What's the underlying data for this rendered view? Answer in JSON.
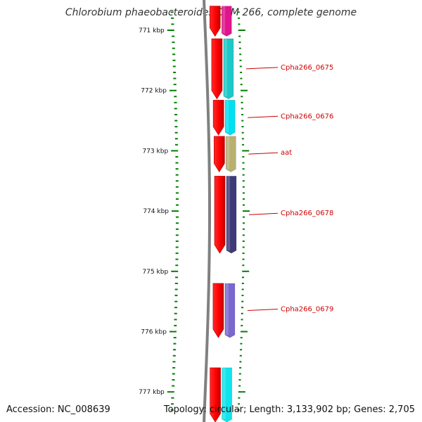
{
  "title": "Chlorobium phaeobacteroides DSM 266, complete genome",
  "footer": {
    "accession": "Accession: NC_008639",
    "stats": "Topology: circular; Length: 3,133,902 bp; Genes: 2,705"
  },
  "ruler": {
    "unit": "kbp",
    "labels": [
      "771 kbp",
      "772 kbp",
      "773 kbp",
      "774 kbp",
      "775 kbp",
      "776 kbp",
      "777 kbp"
    ],
    "start_kbp": 770.68,
    "end_kbp": 777.38,
    "tick_color": "#008000"
  },
  "colors": {
    "backbone": "#808080",
    "strand_gene": "#ff0000",
    "label_text": "#cc0000",
    "label_line": "#cc0000"
  },
  "genes": [
    {
      "start_kbp": 770.6,
      "end_kbp": 771.1,
      "color": "#e0148c",
      "label": ""
    },
    {
      "start_kbp": 771.14,
      "end_kbp": 772.14,
      "color": "#1ec8c8",
      "label": "Cpha266_0675"
    },
    {
      "start_kbp": 772.16,
      "end_kbp": 772.74,
      "color": "#00e0f0",
      "label": "Cpha266_0676"
    },
    {
      "start_kbp": 772.76,
      "end_kbp": 773.35,
      "color": "#b8b070",
      "label": "aat"
    },
    {
      "start_kbp": 773.42,
      "end_kbp": 774.7,
      "color": "#3e3a7a",
      "label": "Cpha266_0678"
    },
    {
      "start_kbp": 775.2,
      "end_kbp": 776.1,
      "color": "#7a68d0",
      "label": "Cpha266_0679"
    },
    {
      "start_kbp": 776.6,
      "end_kbp": 777.5,
      "color": "#10e4ec",
      "label": ""
    }
  ],
  "strand_genes": [
    {
      "start_kbp": 770.6,
      "end_kbp": 771.1
    },
    {
      "start_kbp": 771.14,
      "end_kbp": 772.14
    },
    {
      "start_kbp": 772.16,
      "end_kbp": 772.74
    },
    {
      "start_kbp": 772.76,
      "end_kbp": 773.35
    },
    {
      "start_kbp": 773.42,
      "end_kbp": 774.7
    },
    {
      "start_kbp": 775.2,
      "end_kbp": 776.1
    },
    {
      "start_kbp": 776.6,
      "end_kbp": 777.5
    }
  ]
}
